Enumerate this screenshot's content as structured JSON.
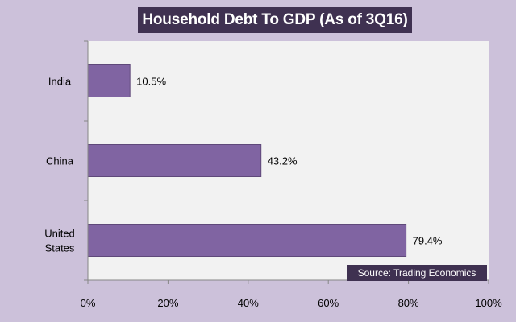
{
  "chart_data": {
    "type": "bar",
    "orientation": "horizontal",
    "title": "Household Debt To GDP (As of 3Q16)",
    "categories": [
      "India",
      "China",
      "United States"
    ],
    "category_lines": [
      [
        "India"
      ],
      [
        "China"
      ],
      [
        "United",
        "States"
      ]
    ],
    "values": [
      10.5,
      43.2,
      79.4
    ],
    "data_labels": [
      "10.5%",
      "43.2%",
      "79.4%"
    ],
    "xlim": [
      0,
      100
    ],
    "ticks": [
      0,
      20,
      40,
      60,
      80,
      100
    ],
    "tick_labels": [
      "0%",
      "20%",
      "40%",
      "60%",
      "80%",
      "100%"
    ],
    "xlabel": "",
    "ylabel": "",
    "grid": false,
    "legend": "none",
    "source": "Source: Trading Economics",
    "colors": {
      "background": "#ccc1da",
      "plot_area": "#f2f2f2",
      "bar_fill": "#8064a2",
      "bar_stroke": "#5f497a",
      "title_bg": "#3f3151",
      "axis": "#868686"
    }
  }
}
